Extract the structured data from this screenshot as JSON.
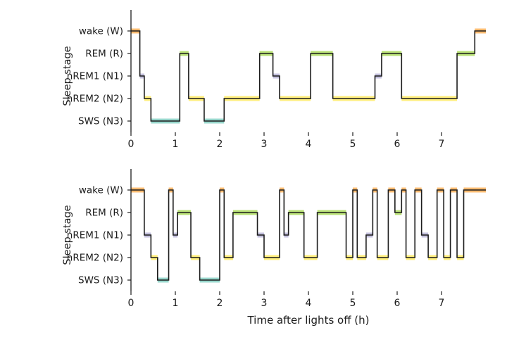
{
  "figure": {
    "xlabel": "Time after lights off (h)",
    "ylabel": "Sleep stage",
    "background": "#ffffff",
    "line_color": "#1c1c1c"
  },
  "stages": [
    {
      "code": "W",
      "label": "wake (W)",
      "color": "#fdb462"
    },
    {
      "code": "R",
      "label": "REM (R)",
      "color": "#b3de69"
    },
    {
      "code": "N1",
      "label": "nREM1 (N1)",
      "color": "#bebada"
    },
    {
      "code": "N2",
      "label": "nREM2 (N2)",
      "color": "#ffed6f"
    },
    {
      "code": "N3",
      "label": "SWS (N3)",
      "color": "#8dd3c7"
    }
  ],
  "chart_data": [
    {
      "type": "step",
      "name": "hypnogram-top-panel",
      "title": "",
      "ylabel": "Sleep stage",
      "xlabel": "",
      "stage_order": [
        "W",
        "R",
        "N1",
        "N2",
        "N3"
      ],
      "xlim": [
        0,
        8
      ],
      "xticks": [
        0,
        1,
        2,
        3,
        4,
        5,
        6,
        7
      ],
      "grid": false,
      "segments": [
        [
          0.0,
          0.2,
          "W"
        ],
        [
          0.2,
          0.3,
          "N1"
        ],
        [
          0.3,
          0.45,
          "N2"
        ],
        [
          0.45,
          1.1,
          "N3"
        ],
        [
          1.1,
          1.3,
          "R"
        ],
        [
          1.3,
          1.65,
          "N2"
        ],
        [
          1.65,
          2.1,
          "N3"
        ],
        [
          2.1,
          2.9,
          "N2"
        ],
        [
          2.9,
          3.2,
          "R"
        ],
        [
          3.2,
          3.35,
          "N1"
        ],
        [
          3.35,
          4.05,
          "N2"
        ],
        [
          4.05,
          4.55,
          "R"
        ],
        [
          4.55,
          5.5,
          "N2"
        ],
        [
          5.5,
          5.65,
          "N1"
        ],
        [
          5.65,
          6.1,
          "R"
        ],
        [
          6.1,
          7.35,
          "N2"
        ],
        [
          7.35,
          7.75,
          "R"
        ],
        [
          7.75,
          8.0,
          "W"
        ]
      ]
    },
    {
      "type": "step",
      "name": "hypnogram-bottom-panel",
      "title": "",
      "ylabel": "Sleep stage",
      "xlabel": "Time after lights off (h)",
      "stage_order": [
        "W",
        "R",
        "N1",
        "N2",
        "N3"
      ],
      "xlim": [
        0,
        8
      ],
      "xticks": [
        0,
        1,
        2,
        3,
        4,
        5,
        6,
        7
      ],
      "grid": false,
      "segments": [
        [
          0.0,
          0.3,
          "W"
        ],
        [
          0.3,
          0.45,
          "N1"
        ],
        [
          0.45,
          0.6,
          "N2"
        ],
        [
          0.6,
          0.85,
          "N3"
        ],
        [
          0.85,
          0.95,
          "W"
        ],
        [
          0.95,
          1.05,
          "N1"
        ],
        [
          1.05,
          1.35,
          "R"
        ],
        [
          1.35,
          1.55,
          "N2"
        ],
        [
          1.55,
          2.0,
          "N3"
        ],
        [
          2.0,
          2.1,
          "W"
        ],
        [
          2.1,
          2.3,
          "N2"
        ],
        [
          2.3,
          2.85,
          "R"
        ],
        [
          2.85,
          3.0,
          "N1"
        ],
        [
          3.0,
          3.35,
          "N2"
        ],
        [
          3.35,
          3.45,
          "W"
        ],
        [
          3.45,
          3.55,
          "N1"
        ],
        [
          3.55,
          3.9,
          "R"
        ],
        [
          3.9,
          4.2,
          "N2"
        ],
        [
          4.2,
          4.85,
          "R"
        ],
        [
          4.85,
          5.0,
          "N2"
        ],
        [
          5.0,
          5.1,
          "W"
        ],
        [
          5.1,
          5.3,
          "N2"
        ],
        [
          5.3,
          5.45,
          "N1"
        ],
        [
          5.45,
          5.55,
          "W"
        ],
        [
          5.55,
          5.8,
          "N2"
        ],
        [
          5.8,
          5.95,
          "W"
        ],
        [
          5.95,
          6.1,
          "R"
        ],
        [
          6.1,
          6.2,
          "W"
        ],
        [
          6.2,
          6.4,
          "N2"
        ],
        [
          6.4,
          6.55,
          "W"
        ],
        [
          6.55,
          6.7,
          "N1"
        ],
        [
          6.7,
          6.9,
          "N2"
        ],
        [
          6.9,
          7.05,
          "W"
        ],
        [
          7.05,
          7.2,
          "N2"
        ],
        [
          7.2,
          7.35,
          "W"
        ],
        [
          7.35,
          7.5,
          "N2"
        ],
        [
          7.5,
          8.0,
          "W"
        ]
      ]
    }
  ]
}
